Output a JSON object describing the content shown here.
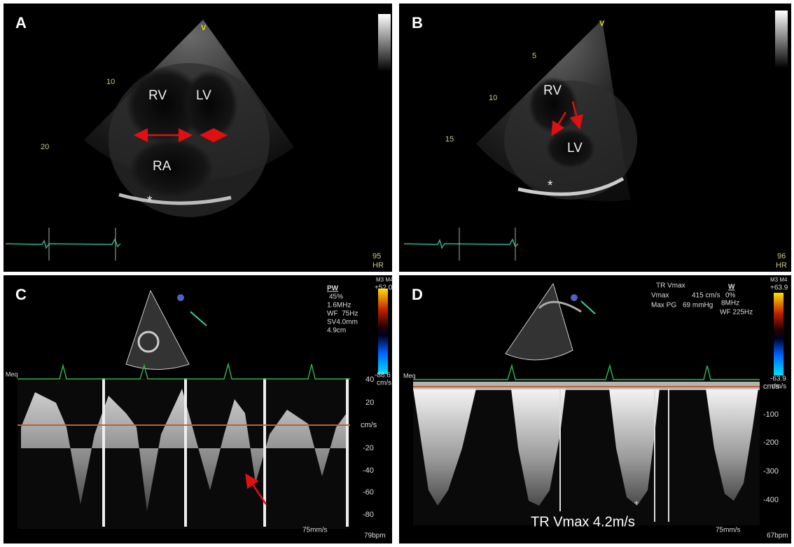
{
  "panels": [
    {
      "letter": "A",
      "labels": [
        "V",
        "10",
        "20",
        "RV",
        "LV",
        "RA",
        "*",
        "95",
        "HR"
      ]
    },
    {
      "letter": "B",
      "labels": [
        "V",
        "5",
        "10",
        "15",
        "RV",
        "LV",
        "*",
        "96",
        "HR"
      ]
    },
    {
      "letter": "C",
      "labels": [
        "PW",
        "45%",
        "1.6MHz",
        "WF  75Hz",
        "SV4.0mm",
        "4.9cm",
        "M3 M4",
        "+52.0",
        "-86.6",
        "cm/s",
        "Meq",
        "75mm/s",
        "79bpm"
      ],
      "scale": [
        "40",
        "20",
        "cm/s",
        "-20",
        "-40",
        "-60",
        "-80"
      ]
    },
    {
      "letter": "D",
      "labels": [
        "TR Vmax",
        "Vmax",
        "415 cm/s",
        "0%",
        "Max PG",
        "69 mmHg",
        "8MHz",
        "WF 225Hz",
        "W",
        "M3 M4",
        "+63.9",
        "-63.9",
        "cm/s",
        "Meq",
        "TR Vmax 4.2m/s",
        "75mm/s",
        "67bpm"
      ],
      "scale": [
        "cm/s",
        "-100",
        "-200",
        "-300",
        "-400"
      ]
    }
  ]
}
